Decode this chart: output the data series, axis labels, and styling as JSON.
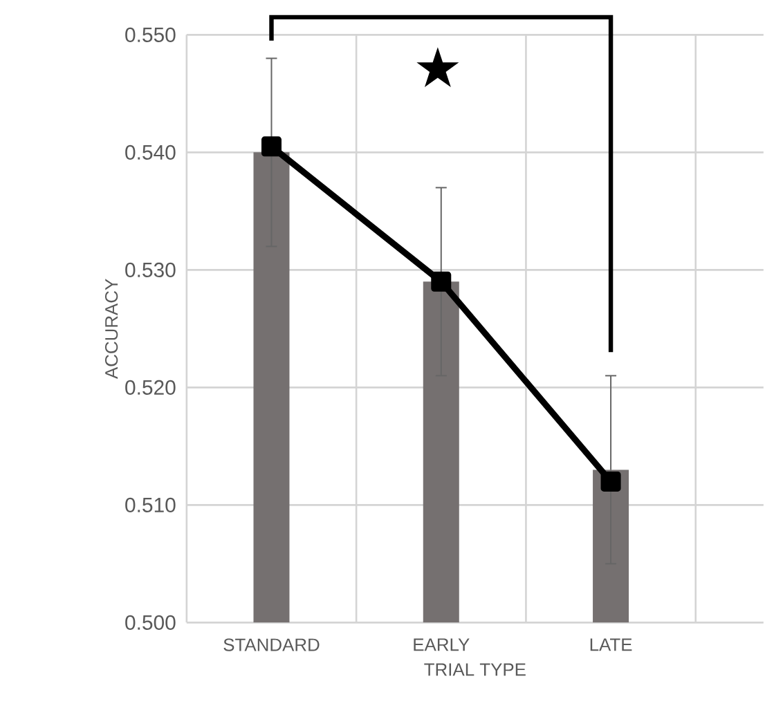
{
  "chart_data": {
    "type": "bar",
    "xlabel": "TRIAL TYPE",
    "ylabel": "ACCURACY",
    "categories": [
      "STANDARD",
      "EARLY",
      "LATE"
    ],
    "series": [
      {
        "color": "#757070",
        "values": [
          0.54,
          0.529,
          0.513
        ],
        "errors": [
          0.008,
          0.008,
          0.008
        ]
      },
      {
        "type": "line",
        "color": "#000000",
        "values": [
          0.5405,
          0.529,
          0.512
        ],
        "marker": "square"
      }
    ],
    "ylim": [
      0.5,
      0.55
    ],
    "yticks": [
      {
        "value": 0.5,
        "label": "0.500"
      },
      {
        "value": 0.51,
        "label": "0.510"
      },
      {
        "value": 0.52,
        "label": "0.520"
      },
      {
        "value": 0.53,
        "label": "0.530"
      },
      {
        "value": 0.54,
        "label": "0.540"
      },
      {
        "value": 0.55,
        "label": "0.550"
      }
    ],
    "grid": true,
    "annotations": [
      "★"
    ]
  }
}
